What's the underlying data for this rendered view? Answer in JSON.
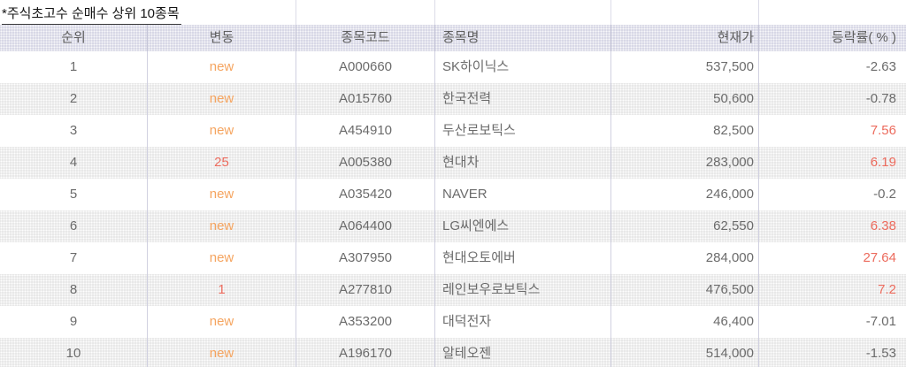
{
  "title": "*주식초고수 순매수 상위 10종목",
  "colors": {
    "title_color": "#141414",
    "header_text": "#5f5f5f",
    "cell_text": "#6b6b6b",
    "new_orange": "#f5a45f",
    "up_red": "#ec6b5d",
    "header_bg": "#d8d8e6",
    "alt_row_bg": "#e8e8e8",
    "grid_line": "#d0d0e0"
  },
  "table": {
    "columns": [
      {
        "key": "rank",
        "label": "순위",
        "align": "center"
      },
      {
        "key": "change",
        "label": "변동",
        "align": "center"
      },
      {
        "key": "code",
        "label": "종목코드",
        "align": "center"
      },
      {
        "key": "name",
        "label": "종목명",
        "align": "left"
      },
      {
        "key": "price",
        "label": "현재가",
        "align": "right"
      },
      {
        "key": "rate",
        "label": "등락률( % )",
        "align": "right"
      }
    ],
    "rows": [
      {
        "rank": "1",
        "change": "new",
        "change_type": "new",
        "code": "A000660",
        "name": "SK하이닉스",
        "price": "537,500",
        "rate": "-2.63",
        "rate_type": "down"
      },
      {
        "rank": "2",
        "change": "new",
        "change_type": "new",
        "code": "A015760",
        "name": "한국전력",
        "price": "50,600",
        "rate": "-0.78",
        "rate_type": "down"
      },
      {
        "rank": "3",
        "change": "new",
        "change_type": "new",
        "code": "A454910",
        "name": "두산로보틱스",
        "price": "82,500",
        "rate": "7.56",
        "rate_type": "up"
      },
      {
        "rank": "4",
        "change": "25",
        "change_type": "num",
        "code": "A005380",
        "name": "현대차",
        "price": "283,000",
        "rate": "6.19",
        "rate_type": "up"
      },
      {
        "rank": "5",
        "change": "new",
        "change_type": "new",
        "code": "A035420",
        "name": "NAVER",
        "price": "246,000",
        "rate": "-0.2",
        "rate_type": "down"
      },
      {
        "rank": "6",
        "change": "new",
        "change_type": "new",
        "code": "A064400",
        "name": "LG씨엔에스",
        "price": "62,550",
        "rate": "6.38",
        "rate_type": "up"
      },
      {
        "rank": "7",
        "change": "new",
        "change_type": "new",
        "code": "A307950",
        "name": "현대오토에버",
        "price": "284,000",
        "rate": "27.64",
        "rate_type": "up"
      },
      {
        "rank": "8",
        "change": "1",
        "change_type": "num",
        "code": "A277810",
        "name": "레인보우로보틱스",
        "price": "476,500",
        "rate": "7.2",
        "rate_type": "up"
      },
      {
        "rank": "9",
        "change": "new",
        "change_type": "new",
        "code": "A353200",
        "name": "대덕전자",
        "price": "46,400",
        "rate": "-7.01",
        "rate_type": "down"
      },
      {
        "rank": "10",
        "change": "new",
        "change_type": "new",
        "code": "A196170",
        "name": "알테오젠",
        "price": "514,000",
        "rate": "-1.53",
        "rate_type": "down"
      }
    ]
  }
}
